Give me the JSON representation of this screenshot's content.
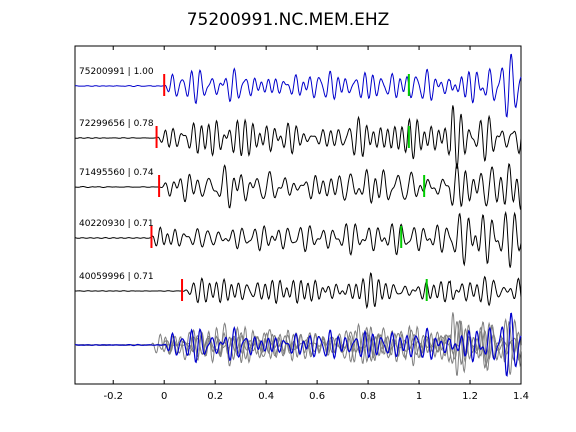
{
  "chart_data": {
    "type": "line",
    "title": "75200991.NC.MEM.EHZ",
    "xlabel": "",
    "ylabel": "",
    "xlim": [
      -0.35,
      1.4
    ],
    "xticks": [
      -0.2,
      0,
      0.2,
      0.4,
      0.6,
      0.8,
      1,
      1.2,
      1.4
    ],
    "xtick_labels": [
      "-0.2",
      "0",
      "0.2",
      "0.4",
      "0.6",
      "0.8",
      "1",
      "1.2",
      "1.4"
    ],
    "grid": false,
    "colors": {
      "reference": "#0000cc",
      "trace": "#000000",
      "stack": "#808080",
      "p_pick": "#ff0000",
      "s_pick": "#00cc00"
    },
    "traces": [
      {
        "label": "75200991 | 1.00",
        "p_pick": 0.0,
        "s_pick": 0.96,
        "reference": true
      },
      {
        "label": "72299656 | 0.78",
        "p_pick": -0.03,
        "s_pick": 0.96,
        "reference": false
      },
      {
        "label": "71495560 | 0.74",
        "p_pick": -0.02,
        "s_pick": 1.02,
        "reference": false
      },
      {
        "label": "40220930 | 0.71",
        "p_pick": -0.05,
        "s_pick": 0.93,
        "reference": false
      },
      {
        "label": "40059996 | 0.71",
        "p_pick": 0.07,
        "s_pick": 1.03,
        "reference": false
      }
    ]
  }
}
